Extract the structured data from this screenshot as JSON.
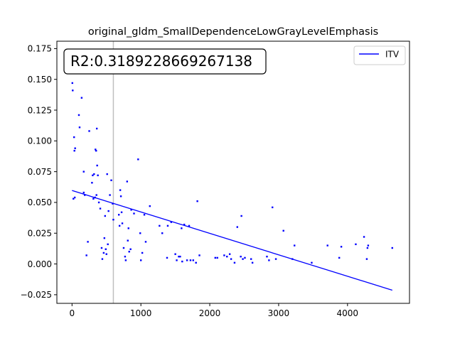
{
  "chart_data": {
    "type": "scatter",
    "title": "original_gldm_SmallDependenceLowGrayLevelEmphasis",
    "xlabel": "",
    "ylabel": "",
    "xlim": [
      -220,
      4900
    ],
    "ylim": [
      -0.032,
      0.181
    ],
    "xticks": [
      0,
      1000,
      2000,
      3000,
      4000
    ],
    "xtick_labels": [
      "0",
      "1000",
      "2000",
      "3000",
      "4000"
    ],
    "yticks": [
      -0.025,
      0.0,
      0.025,
      0.05,
      0.075,
      0.1,
      0.125,
      0.15,
      0.175
    ],
    "ytick_labels": [
      "−0.025",
      "0.000",
      "0.025",
      "0.050",
      "0.075",
      "0.100",
      "0.125",
      "0.150",
      "0.175"
    ],
    "annotation": "R2:0.3189228669267138",
    "vline_x": 600,
    "legend": {
      "position": "top-right",
      "entries": [
        {
          "label": "ITV",
          "color": "#0000ff"
        }
      ]
    },
    "fit_line": {
      "x": [
        0,
        4650
      ],
      "y": [
        0.0597,
        -0.0213
      ]
    },
    "points": [
      [
        5,
        0.147
      ],
      [
        10,
        0.141
      ],
      [
        30,
        0.103
      ],
      [
        35,
        0.092
      ],
      [
        45,
        0.094
      ],
      [
        20,
        0.053
      ],
      [
        40,
        0.054
      ],
      [
        100,
        0.121
      ],
      [
        110,
        0.111
      ],
      [
        140,
        0.135
      ],
      [
        170,
        0.075
      ],
      [
        170,
        0.058
      ],
      [
        185,
        0.056
      ],
      [
        210,
        0.007
      ],
      [
        230,
        0.018
      ],
      [
        250,
        0.108
      ],
      [
        290,
        0.066
      ],
      [
        300,
        0.072
      ],
      [
        310,
        0.053
      ],
      [
        320,
        0.073
      ],
      [
        335,
        0.054
      ],
      [
        340,
        0.093
      ],
      [
        350,
        0.092
      ],
      [
        355,
        0.056
      ],
      [
        360,
        0.11
      ],
      [
        365,
        0.08
      ],
      [
        375,
        0.072
      ],
      [
        390,
        0.05
      ],
      [
        410,
        0.045
      ],
      [
        430,
        0.013
      ],
      [
        440,
        0.004
      ],
      [
        460,
        0.009
      ],
      [
        470,
        0.021
      ],
      [
        480,
        0.039
      ],
      [
        490,
        0.012
      ],
      [
        500,
        0.008
      ],
      [
        510,
        0.073
      ],
      [
        520,
        0.016
      ],
      [
        530,
        0.043
      ],
      [
        550,
        0.056
      ],
      [
        570,
        0.068
      ],
      [
        590,
        0.049
      ],
      [
        600,
        0.036
      ],
      [
        680,
        0.04
      ],
      [
        690,
        0.031
      ],
      [
        700,
        0.06
      ],
      [
        710,
        0.055
      ],
      [
        720,
        0.042
      ],
      [
        730,
        0.033
      ],
      [
        750,
        0.013
      ],
      [
        770,
        0.006
      ],
      [
        780,
        0.003
      ],
      [
        800,
        0.067
      ],
      [
        810,
        0.019
      ],
      [
        820,
        0.029
      ],
      [
        830,
        0.01
      ],
      [
        850,
        0.012
      ],
      [
        860,
        0.044
      ],
      [
        900,
        0.041
      ],
      [
        960,
        0.085
      ],
      [
        990,
        0.025
      ],
      [
        1000,
        0.003
      ],
      [
        1020,
        0.009
      ],
      [
        1050,
        0.04
      ],
      [
        1070,
        0.018
      ],
      [
        1130,
        0.047
      ],
      [
        1270,
        0.031
      ],
      [
        1310,
        0.025
      ],
      [
        1380,
        0.005
      ],
      [
        1390,
        0.031
      ],
      [
        1440,
        0.034
      ],
      [
        1500,
        0.008
      ],
      [
        1520,
        0.003
      ],
      [
        1550,
        0.006
      ],
      [
        1570,
        0.006
      ],
      [
        1590,
        0.029
      ],
      [
        1600,
        0.002
      ],
      [
        1630,
        0.032
      ],
      [
        1670,
        0.003
      ],
      [
        1700,
        0.031
      ],
      [
        1720,
        0.003
      ],
      [
        1760,
        0.003
      ],
      [
        1800,
        0.001
      ],
      [
        1820,
        0.051
      ],
      [
        1850,
        0.007
      ],
      [
        2080,
        0.005
      ],
      [
        2110,
        0.005
      ],
      [
        2210,
        0.007
      ],
      [
        2250,
        0.006
      ],
      [
        2290,
        0.008
      ],
      [
        2310,
        0.004
      ],
      [
        2360,
        0.001
      ],
      [
        2400,
        0.03
      ],
      [
        2450,
        0.006
      ],
      [
        2460,
        0.039
      ],
      [
        2480,
        0.004
      ],
      [
        2510,
        0.005
      ],
      [
        2600,
        0.004
      ],
      [
        2620,
        0.001
      ],
      [
        2830,
        0.006
      ],
      [
        2860,
        0.003
      ],
      [
        2910,
        0.046
      ],
      [
        2960,
        0.004
      ],
      [
        3070,
        0.027
      ],
      [
        3200,
        0.004
      ],
      [
        3230,
        0.015
      ],
      [
        3480,
        0.001
      ],
      [
        3710,
        0.015
      ],
      [
        3880,
        0.005
      ],
      [
        3910,
        0.014
      ],
      [
        4120,
        0.016
      ],
      [
        4240,
        0.022
      ],
      [
        4280,
        0.004
      ],
      [
        4290,
        0.013
      ],
      [
        4300,
        0.015
      ],
      [
        4650,
        0.013
      ]
    ]
  }
}
